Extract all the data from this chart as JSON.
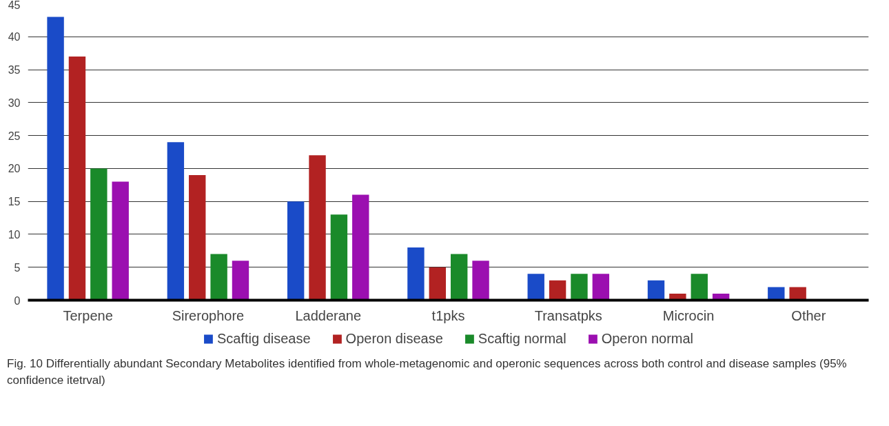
{
  "chart_data": {
    "type": "bar",
    "categories": [
      "Terpene",
      "Sirerophore",
      "Ladderane",
      "t1pks",
      "Transatpks",
      "Microcin",
      "Other"
    ],
    "series": [
      {
        "name": "Scaftig disease",
        "color": "#1a4bc8",
        "values": [
          43,
          24,
          15,
          8,
          4,
          3,
          2
        ]
      },
      {
        "name": "Operon disease",
        "color": "#b22222",
        "values": [
          37,
          19,
          22,
          5,
          3,
          1,
          2
        ]
      },
      {
        "name": "Scaftig normal",
        "color": "#1a8a2a",
        "values": [
          20,
          7,
          13,
          7,
          4,
          4,
          null
        ]
      },
      {
        "name": "Operon normal",
        "color": "#9b0fb0",
        "values": [
          18,
          6,
          16,
          6,
          4,
          1,
          null
        ]
      }
    ],
    "ylim": [
      0,
      45
    ],
    "yticks": [
      0,
      5,
      10,
      15,
      20,
      25,
      30,
      35,
      40,
      45
    ],
    "grid": "y",
    "legend": "bottom",
    "annotations": [
      "Fig. 10 Differentially abundant Secondary Metabolites identified from whole-metagenomic and operonic sequences across both control and disease samples (95% confidence itetrval)"
    ]
  }
}
